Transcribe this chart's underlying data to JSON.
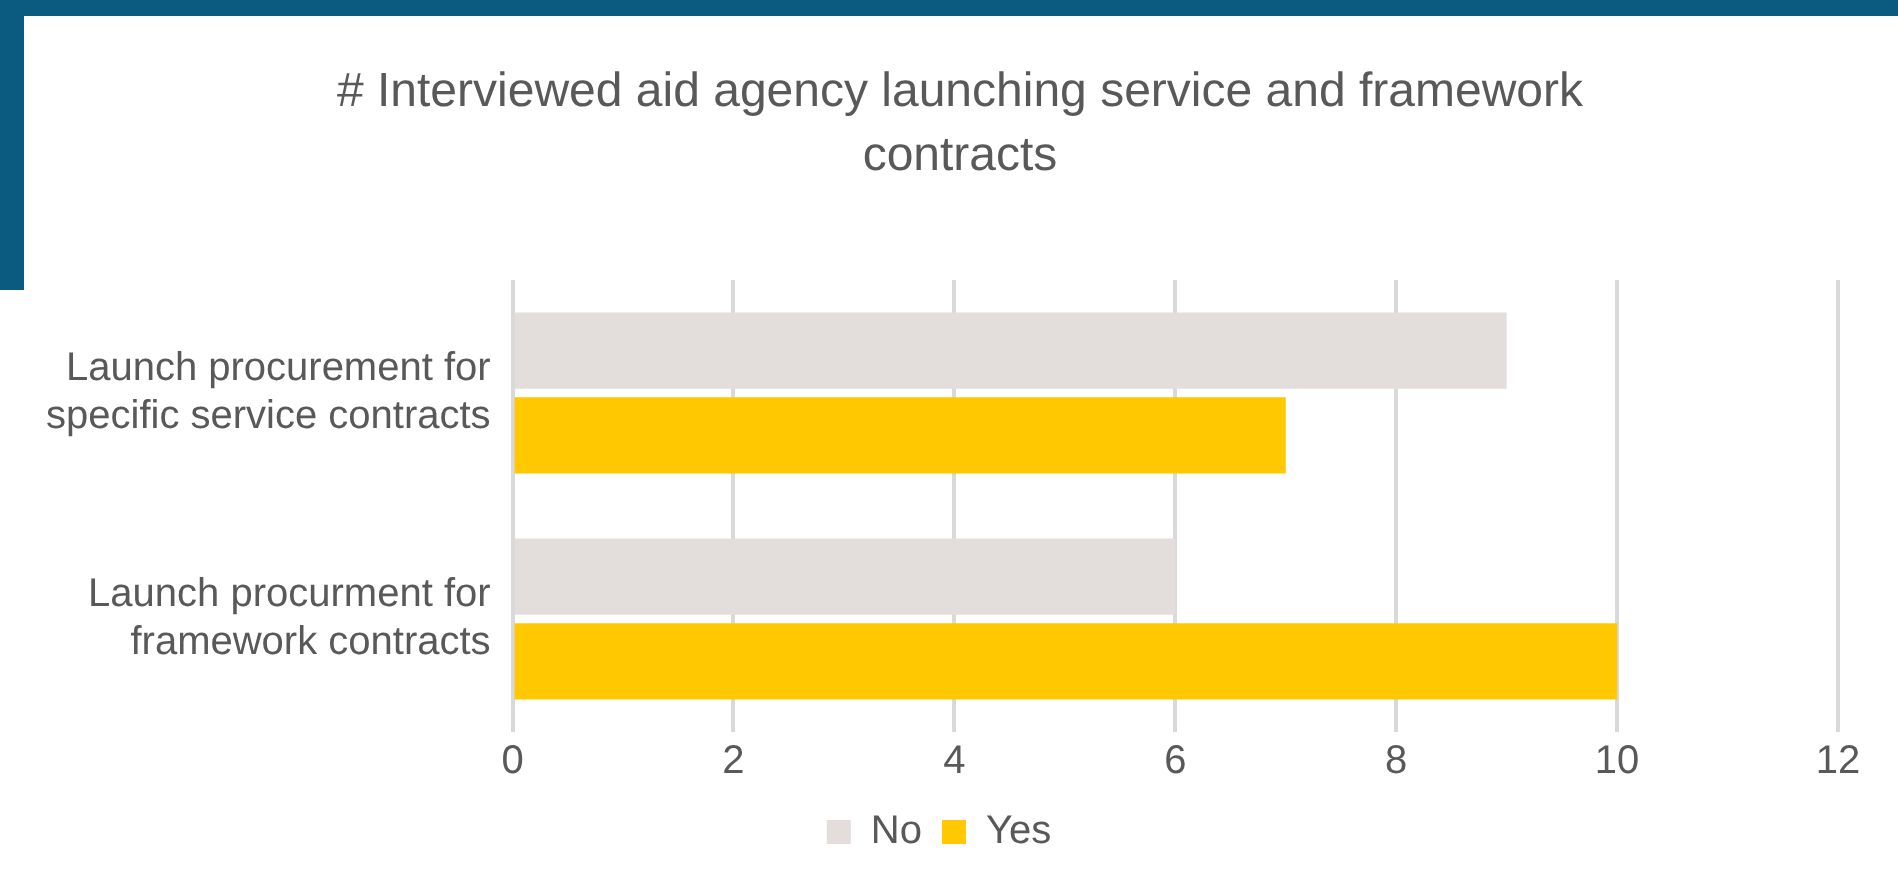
{
  "chart_data": {
    "type": "bar",
    "orientation": "horizontal",
    "title": "# Interviewed aid agency launching  service and framework contracts",
    "categories": [
      "Launch procurement for specific service contracts",
      "Launch procurment for framework contracts"
    ],
    "series": [
      {
        "name": "No",
        "color": "#e3dedb",
        "values": [
          9,
          6
        ]
      },
      {
        "name": "Yes",
        "color": "#ffc800",
        "values": [
          7,
          10
        ]
      }
    ],
    "xlim": [
      0,
      12
    ],
    "xticks": [
      0,
      2,
      4,
      6,
      8,
      10,
      12
    ],
    "grid": "x",
    "legend": "bottom"
  }
}
